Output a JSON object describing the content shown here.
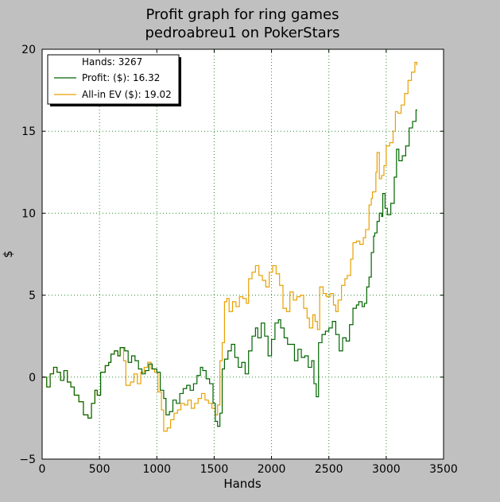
{
  "chart_data": {
    "type": "line",
    "title": "Profit graph for ring games",
    "subtitle": "pedroabreu1 on PokerStars",
    "xlabel": "Hands",
    "ylabel": "$",
    "xlim": [
      0,
      3500
    ],
    "ylim": [
      -5,
      20
    ],
    "xticks": [
      "0",
      "500",
      "1000",
      "1500",
      "2000",
      "2500",
      "3000",
      "3500"
    ],
    "yticks": [
      "−5",
      "0",
      "5",
      "10",
      "15",
      "20"
    ],
    "grid": true,
    "legend_position": "top-left",
    "legend_header": "Hands: 3267",
    "series": [
      {
        "name": "Profit: ($): 16.32",
        "color": "#006400",
        "points": [
          [
            0,
            0
          ],
          [
            40,
            -0.6
          ],
          [
            70,
            0.2
          ],
          [
            100,
            0.6
          ],
          [
            130,
            0.3
          ],
          [
            160,
            -0.2
          ],
          [
            190,
            0.4
          ],
          [
            220,
            -0.3
          ],
          [
            250,
            -0.6
          ],
          [
            280,
            -1.1
          ],
          [
            320,
            -1.5
          ],
          [
            360,
            -2.3
          ],
          [
            400,
            -2.5
          ],
          [
            430,
            -1.6
          ],
          [
            460,
            -0.8
          ],
          [
            480,
            -1.1
          ],
          [
            510,
            0.3
          ],
          [
            550,
            0.7
          ],
          [
            580,
            0.9
          ],
          [
            600,
            1.4
          ],
          [
            630,
            1.6
          ],
          [
            660,
            1.3
          ],
          [
            680,
            1.8
          ],
          [
            720,
            1.6
          ],
          [
            750,
            0.9
          ],
          [
            780,
            1.3
          ],
          [
            810,
            1.0
          ],
          [
            840,
            0.5
          ],
          [
            870,
            0.2
          ],
          [
            900,
            0.4
          ],
          [
            930,
            0.8
          ],
          [
            960,
            0.5
          ],
          [
            1000,
            0.3
          ],
          [
            1030,
            -0.8
          ],
          [
            1060,
            -1.3
          ],
          [
            1080,
            -2.3
          ],
          [
            1110,
            -2.1
          ],
          [
            1140,
            -1.4
          ],
          [
            1170,
            -1.6
          ],
          [
            1200,
            -1.0
          ],
          [
            1230,
            -0.7
          ],
          [
            1260,
            -0.5
          ],
          [
            1290,
            -0.8
          ],
          [
            1320,
            -0.4
          ],
          [
            1350,
            0.1
          ],
          [
            1380,
            0.6
          ],
          [
            1400,
            0.4
          ],
          [
            1430,
            -0.1
          ],
          [
            1460,
            -0.4
          ],
          [
            1490,
            -1.6
          ],
          [
            1510,
            -2.7
          ],
          [
            1530,
            -3.0
          ],
          [
            1550,
            -2.2
          ],
          [
            1570,
            0.5
          ],
          [
            1590,
            1.1
          ],
          [
            1620,
            1.6
          ],
          [
            1650,
            2.0
          ],
          [
            1680,
            1.2
          ],
          [
            1710,
            0.6
          ],
          [
            1740,
            0.9
          ],
          [
            1770,
            0.2
          ],
          [
            1800,
            1.6
          ],
          [
            1830,
            2.5
          ],
          [
            1860,
            3.0
          ],
          [
            1880,
            2.4
          ],
          [
            1910,
            3.3
          ],
          [
            1940,
            2.5
          ],
          [
            1970,
            1.3
          ],
          [
            2000,
            2.3
          ],
          [
            2030,
            3.3
          ],
          [
            2060,
            3.5
          ],
          [
            2080,
            3.0
          ],
          [
            2110,
            2.4
          ],
          [
            2140,
            2.0
          ],
          [
            2170,
            2.0
          ],
          [
            2200,
            1.0
          ],
          [
            2230,
            1.7
          ],
          [
            2260,
            1.2
          ],
          [
            2290,
            1.3
          ],
          [
            2320,
            0.6
          ],
          [
            2350,
            1.0
          ],
          [
            2370,
            -0.4
          ],
          [
            2390,
            -1.2
          ],
          [
            2410,
            2.1
          ],
          [
            2440,
            2.6
          ],
          [
            2470,
            2.8
          ],
          [
            2500,
            3.0
          ],
          [
            2530,
            3.4
          ],
          [
            2560,
            2.6
          ],
          [
            2590,
            1.6
          ],
          [
            2620,
            2.4
          ],
          [
            2650,
            2.2
          ],
          [
            2680,
            3.2
          ],
          [
            2710,
            4.2
          ],
          [
            2740,
            4.4
          ],
          [
            2760,
            4.6
          ],
          [
            2790,
            4.3
          ],
          [
            2810,
            4.5
          ],
          [
            2830,
            5.5
          ],
          [
            2850,
            6.1
          ],
          [
            2870,
            7.6
          ],
          [
            2890,
            8.6
          ],
          [
            2900,
            8.8
          ],
          [
            2920,
            9.5
          ],
          [
            2940,
            10.0
          ],
          [
            2960,
            9.8
          ],
          [
            2970,
            11.2
          ],
          [
            2990,
            10.3
          ],
          [
            3010,
            9.9
          ],
          [
            3040,
            10.6
          ],
          [
            3070,
            12.2
          ],
          [
            3090,
            13.9
          ],
          [
            3110,
            13.2
          ],
          [
            3140,
            13.5
          ],
          [
            3170,
            14.1
          ],
          [
            3200,
            15.2
          ],
          [
            3230,
            15.6
          ],
          [
            3260,
            16.3
          ],
          [
            3267,
            16.32
          ]
        ]
      },
      {
        "name": "All-in EV ($): 19.02",
        "color": "#e8a000",
        "points": [
          [
            0,
            0
          ],
          [
            40,
            -0.6
          ],
          [
            70,
            0.2
          ],
          [
            100,
            0.6
          ],
          [
            130,
            0.3
          ],
          [
            160,
            -0.2
          ],
          [
            190,
            0.4
          ],
          [
            220,
            -0.3
          ],
          [
            250,
            -0.6
          ],
          [
            280,
            -1.1
          ],
          [
            320,
            -1.5
          ],
          [
            360,
            -2.3
          ],
          [
            400,
            -2.5
          ],
          [
            430,
            -1.6
          ],
          [
            460,
            -0.8
          ],
          [
            480,
            -1.1
          ],
          [
            510,
            0.3
          ],
          [
            550,
            0.7
          ],
          [
            580,
            0.9
          ],
          [
            600,
            1.4
          ],
          [
            630,
            1.6
          ],
          [
            660,
            1.3
          ],
          [
            680,
            1.8
          ],
          [
            710,
            1.0
          ],
          [
            730,
            -0.5
          ],
          [
            770,
            -0.3
          ],
          [
            800,
            0.2
          ],
          [
            830,
            -0.4
          ],
          [
            860,
            0.3
          ],
          [
            890,
            0.6
          ],
          [
            920,
            0.9
          ],
          [
            950,
            0.5
          ],
          [
            980,
            0.3
          ],
          [
            1010,
            -0.9
          ],
          [
            1040,
            -2.0
          ],
          [
            1060,
            -3.3
          ],
          [
            1090,
            -3.1
          ],
          [
            1120,
            -2.6
          ],
          [
            1150,
            -2.2
          ],
          [
            1180,
            -2.0
          ],
          [
            1210,
            -1.6
          ],
          [
            1240,
            -1.7
          ],
          [
            1270,
            -1.4
          ],
          [
            1300,
            -1.9
          ],
          [
            1330,
            -1.6
          ],
          [
            1360,
            -1.3
          ],
          [
            1390,
            -1.0
          ],
          [
            1420,
            -1.4
          ],
          [
            1450,
            -1.6
          ],
          [
            1480,
            -1.9
          ],
          [
            1510,
            -2.3
          ],
          [
            1530,
            -1.7
          ],
          [
            1550,
            1.0
          ],
          [
            1570,
            2.1
          ],
          [
            1590,
            4.6
          ],
          [
            1610,
            4.8
          ],
          [
            1630,
            4.0
          ],
          [
            1660,
            4.6
          ],
          [
            1690,
            4.3
          ],
          [
            1720,
            4.9
          ],
          [
            1750,
            4.8
          ],
          [
            1780,
            4.5
          ],
          [
            1800,
            6.0
          ],
          [
            1830,
            6.4
          ],
          [
            1860,
            6.8
          ],
          [
            1890,
            6.2
          ],
          [
            1920,
            5.9
          ],
          [
            1950,
            5.5
          ],
          [
            1980,
            6.4
          ],
          [
            2010,
            6.8
          ],
          [
            2040,
            6.3
          ],
          [
            2070,
            5.6
          ],
          [
            2100,
            4.2
          ],
          [
            2130,
            4.0
          ],
          [
            2160,
            5.2
          ],
          [
            2190,
            4.7
          ],
          [
            2220,
            4.9
          ],
          [
            2250,
            5.0
          ],
          [
            2280,
            4.2
          ],
          [
            2310,
            3.6
          ],
          [
            2330,
            3.0
          ],
          [
            2360,
            3.8
          ],
          [
            2380,
            3.4
          ],
          [
            2400,
            2.9
          ],
          [
            2420,
            5.5
          ],
          [
            2450,
            5.1
          ],
          [
            2480,
            4.9
          ],
          [
            2510,
            5.1
          ],
          [
            2540,
            4.4
          ],
          [
            2560,
            4.0
          ],
          [
            2580,
            4.7
          ],
          [
            2610,
            5.6
          ],
          [
            2640,
            6.0
          ],
          [
            2660,
            6.2
          ],
          [
            2690,
            7.2
          ],
          [
            2710,
            8.2
          ],
          [
            2740,
            8.3
          ],
          [
            2770,
            8.1
          ],
          [
            2800,
            8.5
          ],
          [
            2820,
            9.0
          ],
          [
            2850,
            10.5
          ],
          [
            2870,
            10.9
          ],
          [
            2880,
            11.3
          ],
          [
            2890,
            11.3
          ],
          [
            2910,
            12.5
          ],
          [
            2920,
            13.7
          ],
          [
            2940,
            12.1
          ],
          [
            2960,
            12.3
          ],
          [
            2980,
            12.9
          ],
          [
            3000,
            14.1
          ],
          [
            3030,
            14.3
          ],
          [
            3060,
            15.0
          ],
          [
            3080,
            16.2
          ],
          [
            3100,
            16.1
          ],
          [
            3130,
            16.6
          ],
          [
            3160,
            17.3
          ],
          [
            3190,
            18.1
          ],
          [
            3220,
            18.6
          ],
          [
            3250,
            19.2
          ],
          [
            3267,
            19.02
          ]
        ]
      }
    ]
  }
}
